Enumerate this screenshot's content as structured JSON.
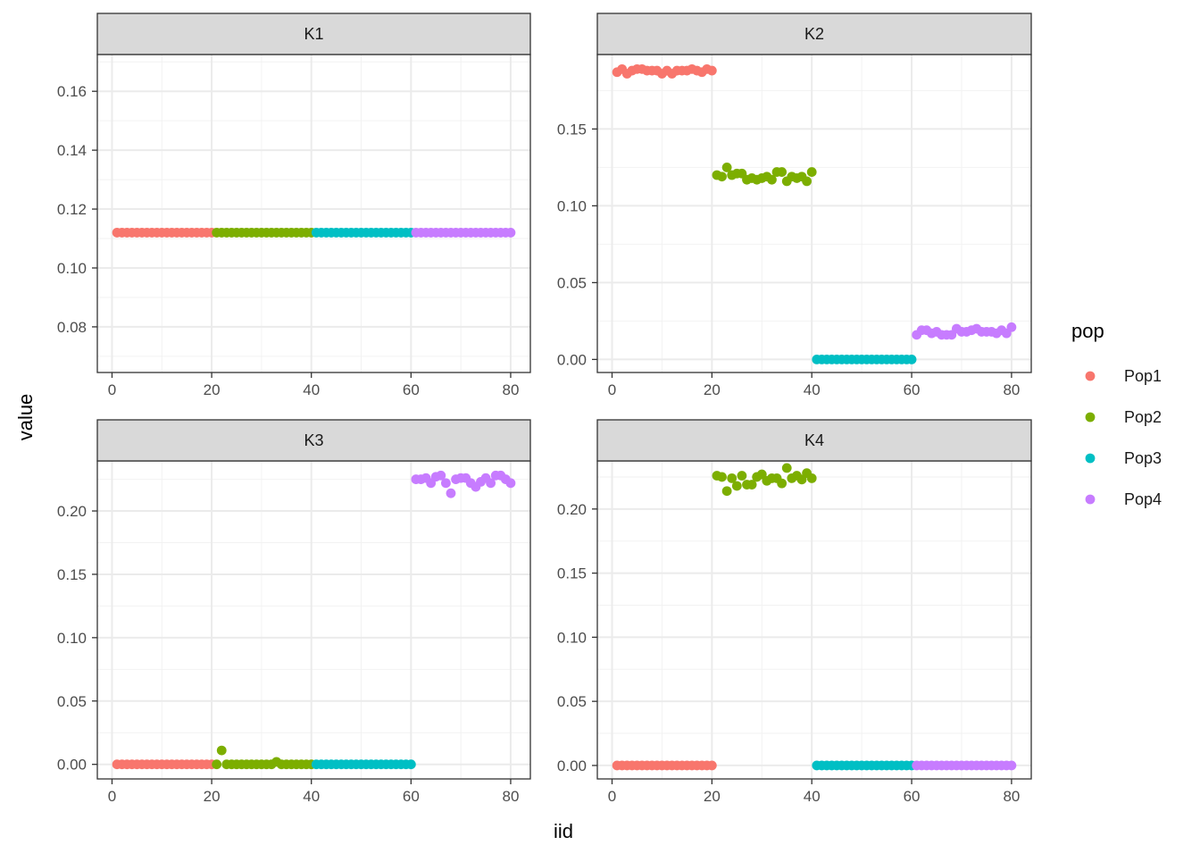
{
  "chart_data": {
    "type": "scatter",
    "xlabel": "iid",
    "ylabel": "value",
    "legend": {
      "title": "pop",
      "position": "right",
      "entries": [
        {
          "name": "Pop1",
          "color": "#F8766D"
        },
        {
          "name": "Pop2",
          "color": "#7CAE00"
        },
        {
          "name": "Pop3",
          "color": "#00BFC4"
        },
        {
          "name": "Pop4",
          "color": "#C77CFF"
        }
      ]
    },
    "grid": true,
    "xlim": [
      -2.95,
      83.95
    ],
    "xticks": [
      0,
      20,
      40,
      60,
      80
    ],
    "x": [
      1,
      2,
      3,
      4,
      5,
      6,
      7,
      8,
      9,
      10,
      11,
      12,
      13,
      14,
      15,
      16,
      17,
      18,
      19,
      20,
      21,
      22,
      23,
      24,
      25,
      26,
      27,
      28,
      29,
      30,
      31,
      32,
      33,
      34,
      35,
      36,
      37,
      38,
      39,
      40,
      41,
      42,
      43,
      44,
      45,
      46,
      47,
      48,
      49,
      50,
      51,
      52,
      53,
      54,
      55,
      56,
      57,
      58,
      59,
      60,
      61,
      62,
      63,
      64,
      65,
      66,
      67,
      68,
      69,
      70,
      71,
      72,
      73,
      74,
      75,
      76,
      77,
      78,
      79,
      80
    ],
    "pop_of_x": [
      "Pop1",
      "Pop1",
      "Pop1",
      "Pop1",
      "Pop1",
      "Pop1",
      "Pop1",
      "Pop1",
      "Pop1",
      "Pop1",
      "Pop1",
      "Pop1",
      "Pop1",
      "Pop1",
      "Pop1",
      "Pop1",
      "Pop1",
      "Pop1",
      "Pop1",
      "Pop1",
      "Pop2",
      "Pop2",
      "Pop2",
      "Pop2",
      "Pop2",
      "Pop2",
      "Pop2",
      "Pop2",
      "Pop2",
      "Pop2",
      "Pop2",
      "Pop2",
      "Pop2",
      "Pop2",
      "Pop2",
      "Pop2",
      "Pop2",
      "Pop2",
      "Pop2",
      "Pop2",
      "Pop3",
      "Pop3",
      "Pop3",
      "Pop3",
      "Pop3",
      "Pop3",
      "Pop3",
      "Pop3",
      "Pop3",
      "Pop3",
      "Pop3",
      "Pop3",
      "Pop3",
      "Pop3",
      "Pop3",
      "Pop3",
      "Pop3",
      "Pop3",
      "Pop3",
      "Pop3",
      "Pop4",
      "Pop4",
      "Pop4",
      "Pop4",
      "Pop4",
      "Pop4",
      "Pop4",
      "Pop4",
      "Pop4",
      "Pop4",
      "Pop4",
      "Pop4",
      "Pop4",
      "Pop4",
      "Pop4",
      "Pop4",
      "Pop4",
      "Pop4",
      "Pop4",
      "Pop4"
    ],
    "panels": [
      {
        "strip": "K1",
        "ylim": [
          0.0645,
          0.1725
        ],
        "yticks": [
          0.08,
          0.1,
          0.12,
          0.14,
          0.16
        ],
        "ytick_labels": [
          "0.08",
          "0.10",
          "0.12",
          "0.14",
          "0.16"
        ],
        "values": [
          0.112,
          0.112,
          0.112,
          0.112,
          0.112,
          0.112,
          0.112,
          0.112,
          0.112,
          0.112,
          0.112,
          0.112,
          0.112,
          0.112,
          0.112,
          0.112,
          0.112,
          0.112,
          0.112,
          0.112,
          0.112,
          0.112,
          0.112,
          0.112,
          0.112,
          0.112,
          0.112,
          0.112,
          0.112,
          0.112,
          0.112,
          0.112,
          0.112,
          0.112,
          0.112,
          0.112,
          0.112,
          0.112,
          0.112,
          0.112,
          0.112,
          0.112,
          0.112,
          0.112,
          0.112,
          0.112,
          0.112,
          0.112,
          0.112,
          0.112,
          0.112,
          0.112,
          0.112,
          0.112,
          0.112,
          0.112,
          0.112,
          0.112,
          0.112,
          0.112,
          0.112,
          0.112,
          0.112,
          0.112,
          0.112,
          0.112,
          0.112,
          0.112,
          0.112,
          0.112,
          0.112,
          0.112,
          0.112,
          0.112,
          0.112,
          0.112,
          0.112,
          0.112,
          0.112,
          0.112
        ]
      },
      {
        "strip": "K2",
        "ylim": [
          -0.0085,
          0.1985
        ],
        "yticks": [
          0.0,
          0.05,
          0.1,
          0.15
        ],
        "ytick_labels": [
          "0.00",
          "0.05",
          "0.10",
          "0.15"
        ],
        "values": [
          0.187,
          0.189,
          0.186,
          0.188,
          0.189,
          0.189,
          0.188,
          0.188,
          0.188,
          0.186,
          0.188,
          0.186,
          0.188,
          0.188,
          0.188,
          0.189,
          0.188,
          0.187,
          0.189,
          0.188,
          0.12,
          0.119,
          0.125,
          0.12,
          0.121,
          0.121,
          0.117,
          0.118,
          0.117,
          0.118,
          0.119,
          0.117,
          0.122,
          0.122,
          0.116,
          0.119,
          0.118,
          0.119,
          0.116,
          0.122,
          0.0,
          0.0,
          0.0,
          0.0,
          0.0,
          0.0,
          0.0,
          0.0,
          0.0,
          0.0,
          0.0,
          0.0,
          0.0,
          0.0,
          0.0,
          0.0,
          0.0,
          0.0,
          0.0,
          0.0,
          0.016,
          0.019,
          0.019,
          0.017,
          0.018,
          0.016,
          0.016,
          0.016,
          0.02,
          0.018,
          0.018,
          0.019,
          0.02,
          0.018,
          0.018,
          0.018,
          0.017,
          0.019,
          0.017,
          0.021
        ]
      },
      {
        "strip": "K3",
        "ylim": [
          -0.0115,
          0.2395
        ],
        "yticks": [
          0.0,
          0.05,
          0.1,
          0.15,
          0.2
        ],
        "ytick_labels": [
          "0.00",
          "0.05",
          "0.10",
          "0.15",
          "0.20"
        ],
        "values": [
          0.0,
          0.0,
          0.0,
          0.0,
          0.0,
          0.0,
          0.0,
          0.0,
          0.0,
          0.0,
          0.0,
          0.0,
          0.0,
          0.0,
          0.0,
          0.0,
          0.0,
          0.0,
          0.0,
          0.0,
          0.0,
          0.011,
          0.0,
          0.0,
          0.0,
          0.0,
          0.0,
          0.0,
          0.0,
          0.0,
          0.0,
          0.0,
          0.002,
          0.0,
          0.0,
          0.0,
          0.0,
          0.0,
          0.0,
          0.0,
          0.0,
          0.0,
          0.0,
          0.0,
          0.0,
          0.0,
          0.0,
          0.0,
          0.0,
          0.0,
          0.0,
          0.0,
          0.0,
          0.0,
          0.0,
          0.0,
          0.0,
          0.0,
          0.0,
          0.0,
          0.225,
          0.225,
          0.226,
          0.222,
          0.227,
          0.228,
          0.222,
          0.214,
          0.225,
          0.226,
          0.226,
          0.222,
          0.219,
          0.223,
          0.226,
          0.222,
          0.228,
          0.228,
          0.225,
          0.222
        ]
      },
      {
        "strip": "K4",
        "ylim": [
          -0.0105,
          0.2375
        ],
        "yticks": [
          0.0,
          0.05,
          0.1,
          0.15,
          0.2
        ],
        "ytick_labels": [
          "0.00",
          "0.05",
          "0.10",
          "0.15",
          "0.20"
        ],
        "values": [
          0.0,
          0.0,
          0.0,
          0.0,
          0.0,
          0.0,
          0.0,
          0.0,
          0.0,
          0.0,
          0.0,
          0.0,
          0.0,
          0.0,
          0.0,
          0.0,
          0.0,
          0.0,
          0.0,
          0.0,
          0.226,
          0.225,
          0.214,
          0.224,
          0.218,
          0.226,
          0.219,
          0.219,
          0.225,
          0.227,
          0.222,
          0.224,
          0.224,
          0.22,
          0.232,
          0.224,
          0.226,
          0.223,
          0.228,
          0.224,
          0.0,
          0.0,
          0.0,
          0.0,
          0.0,
          0.0,
          0.0,
          0.0,
          0.0,
          0.0,
          0.0,
          0.0,
          0.0,
          0.0,
          0.0,
          0.0,
          0.0,
          0.0,
          0.0,
          0.0,
          0.0,
          0.0,
          0.0,
          0.0,
          0.0,
          0.0,
          0.0,
          0.0,
          0.0,
          0.0,
          0.0,
          0.0,
          0.0,
          0.0,
          0.0,
          0.0,
          0.0,
          0.0,
          0.0,
          0.0
        ]
      }
    ]
  }
}
